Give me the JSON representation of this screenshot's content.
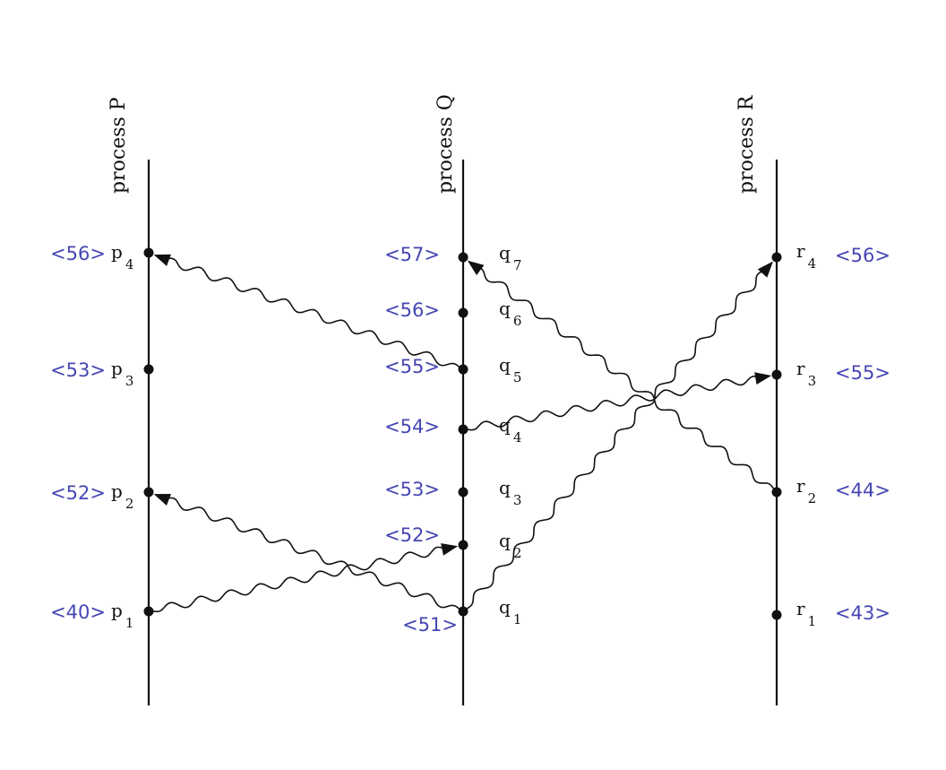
{
  "colors": {
    "ink": "#111111",
    "timestamp": "#4646b4"
  },
  "processes": [
    {
      "id": "P",
      "label": "process P",
      "events": [
        {
          "id": "p1",
          "letter": "p",
          "index": "1",
          "timestamp": "<40>"
        },
        {
          "id": "p2",
          "letter": "p",
          "index": "2",
          "timestamp": "<52>"
        },
        {
          "id": "p3",
          "letter": "p",
          "index": "3",
          "timestamp": "<53>"
        },
        {
          "id": "p4",
          "letter": "p",
          "index": "4",
          "timestamp": "<56>"
        }
      ]
    },
    {
      "id": "Q",
      "label": "process Q",
      "events": [
        {
          "id": "q1",
          "letter": "q",
          "index": "1",
          "timestamp": "<51>"
        },
        {
          "id": "q2",
          "letter": "q",
          "index": "2",
          "timestamp": "<52>"
        },
        {
          "id": "q3",
          "letter": "q",
          "index": "3",
          "timestamp": "<53>"
        },
        {
          "id": "q4",
          "letter": "q",
          "index": "4",
          "timestamp": "<54>"
        },
        {
          "id": "q5",
          "letter": "q",
          "index": "5",
          "timestamp": "<55>"
        },
        {
          "id": "q6",
          "letter": "q",
          "index": "6",
          "timestamp": "<56>"
        },
        {
          "id": "q7",
          "letter": "q",
          "index": "7",
          "timestamp": "<57>"
        }
      ]
    },
    {
      "id": "R",
      "label": "process R",
      "events": [
        {
          "id": "r1",
          "letter": "r",
          "index": "1",
          "timestamp": "<43>"
        },
        {
          "id": "r2",
          "letter": "r",
          "index": "2",
          "timestamp": "<44>"
        },
        {
          "id": "r3",
          "letter": "r",
          "index": "3",
          "timestamp": "<55>"
        },
        {
          "id": "r4",
          "letter": "r",
          "index": "4",
          "timestamp": "<56>"
        }
      ]
    }
  ],
  "messages": [
    {
      "from": "p1",
      "to": "q2"
    },
    {
      "from": "q1",
      "to": "p2"
    },
    {
      "from": "q1",
      "to": "r4"
    },
    {
      "from": "q4",
      "to": "r3"
    },
    {
      "from": "q5",
      "to": "p4"
    },
    {
      "from": "r2",
      "to": "q7"
    }
  ]
}
